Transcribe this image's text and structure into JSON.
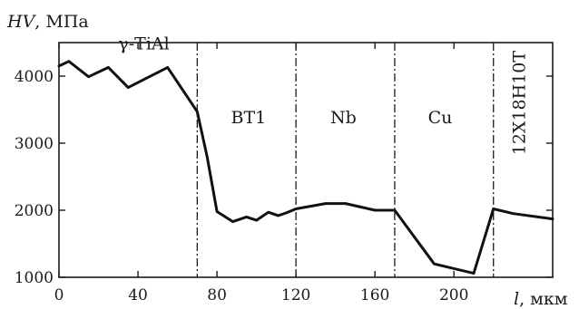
{
  "chart_data": {
    "type": "line",
    "ylabel_var": "HV",
    "ylabel_unit": ", МПа",
    "xlabel_var": "l",
    "xlabel_unit": ", мкм",
    "xlim": [
      0,
      250
    ],
    "ylim": [
      1000,
      4500
    ],
    "xticks": [
      0,
      40,
      80,
      120,
      160,
      200
    ],
    "yticks": [
      1000,
      2000,
      3000,
      4000
    ],
    "boundaries": [
      70,
      120,
      170,
      220
    ],
    "zones": [
      {
        "label": "γ-TiAl",
        "x": 43,
        "y": 4400,
        "rotate": false
      },
      {
        "label": "ВТ1",
        "x": 96,
        "y": 3300,
        "rotate": false
      },
      {
        "label": "Nb",
        "x": 144,
        "y": 3300,
        "rotate": false
      },
      {
        "label": "Cu",
        "x": 193,
        "y": 3300,
        "rotate": false
      },
      {
        "label": "12Х18Н10Т",
        "x": 236,
        "y": 3600,
        "rotate": true
      }
    ],
    "series": [
      {
        "x": [
          0,
          5,
          15,
          25,
          35,
          55,
          70,
          75,
          80,
          88,
          95,
          100,
          106,
          111,
          115,
          120,
          135,
          145,
          160,
          170,
          190,
          210,
          220,
          230,
          250
        ],
        "y": [
          4150,
          4220,
          3990,
          4130,
          3830,
          4130,
          3470,
          2800,
          1980,
          1830,
          1900,
          1850,
          1970,
          1920,
          1960,
          2020,
          2100,
          2100,
          2000,
          2000,
          1200,
          1060,
          2020,
          1950,
          1870
        ]
      }
    ]
  }
}
